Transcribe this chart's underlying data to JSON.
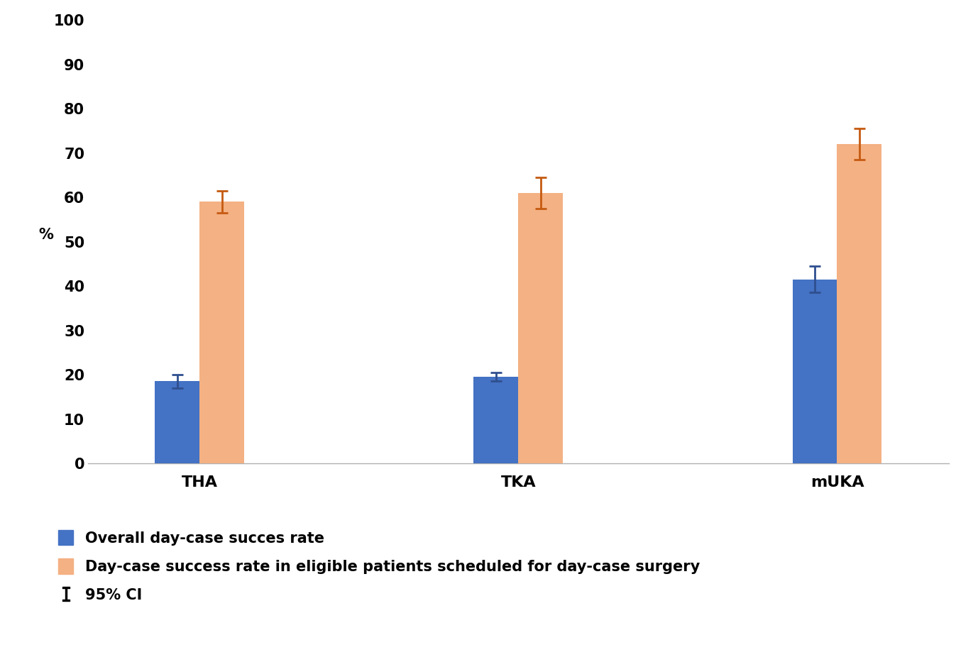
{
  "categories": [
    "THA",
    "TKA",
    "mUKA"
  ],
  "overall_values": [
    18.5,
    19.5,
    41.5
  ],
  "overall_ci_lower": [
    1.5,
    1.0,
    3.0
  ],
  "overall_ci_upper": [
    1.5,
    1.0,
    3.0
  ],
  "eligible_values": [
    59.0,
    61.0,
    72.0
  ],
  "eligible_ci_lower": [
    2.5,
    3.5,
    3.5
  ],
  "eligible_ci_upper": [
    2.5,
    3.5,
    3.5
  ],
  "overall_color": "#4472C4",
  "eligible_color": "#F4B183",
  "overall_error_color": "#2F4F8F",
  "eligible_error_color": "#C55A11",
  "ylim": [
    0,
    100
  ],
  "yticks": [
    0,
    10,
    20,
    30,
    40,
    50,
    60,
    70,
    80,
    90,
    100
  ],
  "ylabel": "%",
  "bar_width": 0.28,
  "legend_label_overall": "Overall day-case succes rate",
  "legend_label_eligible": "Day-case success rate in eligible patients scheduled for day-case surgery",
  "legend_label_ci": "95% CI",
  "legend_fontsize": 15,
  "tick_fontsize": 15,
  "xlabel_fontsize": 16,
  "ylabel_fontsize": 15,
  "background_color": "#ffffff",
  "capsize": 6,
  "elinewidth": 2.0,
  "ecapthick": 2.0
}
